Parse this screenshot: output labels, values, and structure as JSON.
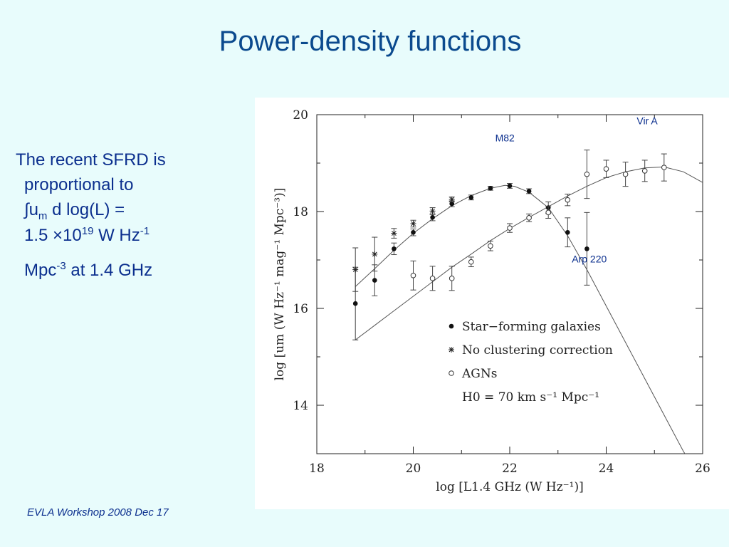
{
  "slide": {
    "title": "Power-density functions",
    "footer": "EVLA Workshop 2008 Dec 17",
    "text": {
      "l1": "The recent SFRD is",
      "l2": "proportional to",
      "l3a": "∫u",
      "l3b": "m",
      "l3c": " d log(L) =",
      "l4a": "1.5 ×10",
      "l4b": "19",
      "l4c": " W Hz",
      "l4d": "-1",
      "l5a": "Mpc",
      "l5b": "-3",
      "l5c": " at 1.4 GHz"
    }
  },
  "chart_data": {
    "type": "scatter",
    "xlabel": "log [L1.4 GHz (W Hz⁻¹)]",
    "ylabel": "log [um (W Hz⁻¹ mag⁻¹ Mpc⁻³)]",
    "xlim": [
      18,
      26
    ],
    "ylim": [
      13,
      20
    ],
    "x_ticks": [
      18,
      20,
      22,
      24,
      26
    ],
    "y_ticks": [
      14,
      16,
      18,
      20
    ],
    "legend_position": "inside-bottom-right",
    "legend": [
      {
        "marker": "filled-circle",
        "label": "Star−forming galaxies"
      },
      {
        "marker": "asterisk",
        "label": "No clustering correction"
      },
      {
        "marker": "open-circle",
        "label": "AGNs"
      }
    ],
    "legend_note": "H0 = 70 km s⁻¹ Mpc⁻¹",
    "series": [
      {
        "marker": "filled-circle",
        "x": [
          18.8,
          19.2,
          19.6,
          20.0,
          20.4,
          20.8,
          21.2,
          21.6,
          22.0,
          22.4,
          22.8,
          23.2,
          23.6
        ],
        "y": [
          16.1,
          16.58,
          17.23,
          17.57,
          17.88,
          18.16,
          18.29,
          18.48,
          18.53,
          18.42,
          18.08,
          17.57,
          17.23
        ],
        "err": [
          0.75,
          0.32,
          0.12,
          0.07,
          0.07,
          0.06,
          0.05,
          0.04,
          0.05,
          0.05,
          0.12,
          0.3,
          0.75
        ]
      },
      {
        "marker": "asterisk",
        "x": [
          18.8,
          19.2,
          19.6,
          20.0,
          20.4,
          20.8
        ],
        "y": [
          16.8,
          17.12,
          17.55,
          17.75,
          18.01,
          18.25
        ],
        "err": [
          0.45,
          0.35,
          0.1,
          0.07,
          0.07,
          0.05
        ]
      },
      {
        "marker": "open-circle",
        "x": [
          20.0,
          20.4,
          20.8,
          21.2,
          21.6,
          22.0,
          22.4,
          22.8,
          23.2,
          23.6,
          24.0,
          24.4,
          24.8,
          25.2
        ],
        "y": [
          16.68,
          16.62,
          16.62,
          16.96,
          17.29,
          17.66,
          17.87,
          17.98,
          18.24,
          18.77,
          18.88,
          18.77,
          18.84,
          18.91
        ],
        "err": [
          0.3,
          0.25,
          0.25,
          0.1,
          0.1,
          0.09,
          0.08,
          0.12,
          0.12,
          0.5,
          0.18,
          0.25,
          0.22,
          0.28
        ]
      }
    ],
    "curves": [
      {
        "x": [
          18.8,
          19.2,
          19.6,
          20.0,
          20.4,
          20.8,
          21.2,
          21.6,
          21.9,
          22.1,
          22.4,
          22.8,
          23.2,
          23.6,
          24.0,
          24.4,
          24.8,
          25.2,
          25.6,
          25.95
        ],
        "y": [
          16.45,
          16.82,
          17.2,
          17.55,
          17.85,
          18.12,
          18.33,
          18.48,
          18.54,
          18.52,
          18.4,
          18.08,
          17.5,
          16.8,
          16.05,
          15.3,
          14.55,
          13.8,
          13.05,
          12.5
        ]
      },
      {
        "x": [
          18.8,
          19.2,
          19.6,
          20.0,
          20.4,
          20.8,
          21.2,
          21.6,
          22.0,
          22.4,
          22.8,
          23.2,
          23.6,
          24.0,
          24.4,
          24.8,
          25.2,
          25.6,
          26.0
        ],
        "y": [
          15.35,
          15.65,
          15.95,
          16.25,
          16.55,
          16.85,
          17.12,
          17.4,
          17.65,
          17.88,
          18.1,
          18.32,
          18.52,
          18.7,
          18.82,
          18.9,
          18.92,
          18.82,
          18.6
        ]
      }
    ],
    "annotations": [
      {
        "text": "Vir A",
        "x": 24.85,
        "y": 19.8
      },
      {
        "text": "M82",
        "x": 21.9,
        "y": 19.45
      },
      {
        "text": "Arp 220",
        "x": 23.65,
        "y": 16.95
      }
    ]
  }
}
